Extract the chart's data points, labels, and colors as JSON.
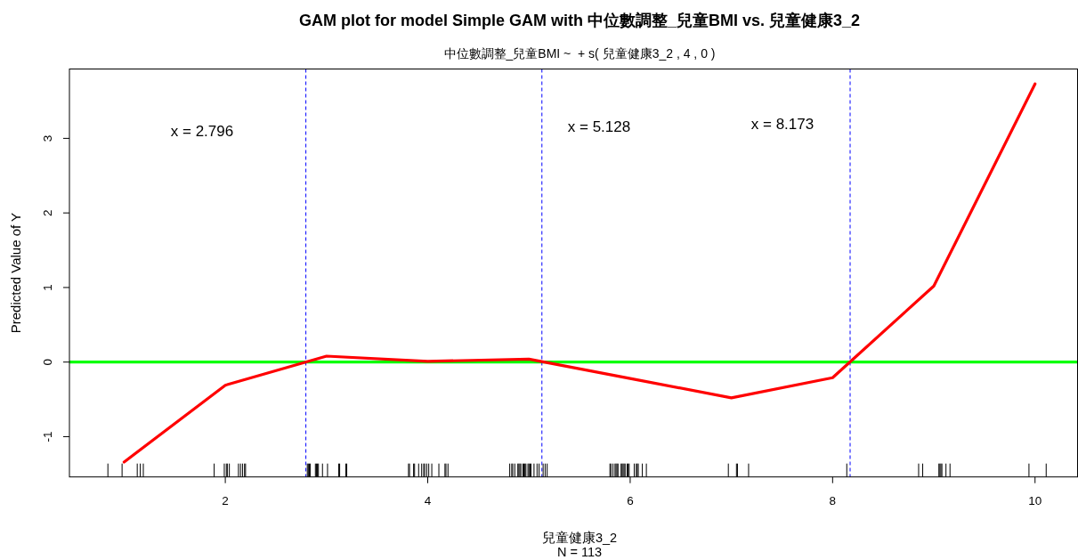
{
  "chart_data": {
    "type": "line",
    "title": "GAM plot for model Simple GAM with 中位數調整_兒童BMI vs. 兒童健康3_2",
    "subtitle": "中位數調整_兒童BMI ~  + s( 兒童健康3_2 , 4 , 0 )",
    "xlabel": "兒童健康3_2",
    "ylabel": "Predicted Value of Y",
    "annotations": [
      "x = 2.796",
      "x = 5.128",
      "x = 8.173",
      "N = 113"
    ],
    "series": [
      {
        "color": "#ff0000",
        "x": [
          1,
          2,
          3,
          4,
          5,
          6,
          7,
          8,
          9,
          10
        ],
        "values": [
          -1.34,
          -0.31,
          0.08,
          0.01,
          0.04,
          -0.22,
          -0.48,
          -0.21,
          1.02,
          3.73
        ]
      }
    ],
    "xlim": [
      0.46,
      10.42
    ],
    "ylim": [
      -1.54,
      3.93
    ],
    "xticks": [
      {
        "value": 0.84,
        "label": null
      },
      {
        "value": 0.98,
        "label": null
      },
      {
        "value": 1.13,
        "label": null
      },
      {
        "value": 1.16,
        "label": null
      },
      {
        "value": 1.19,
        "label": null
      },
      {
        "value": 1.89,
        "label": null
      },
      {
        "value": 1.99,
        "label": null
      },
      2,
      {
        "value": 2.01,
        "label": null
      },
      {
        "value": 2.02,
        "label": null
      },
      {
        "value": 2.04,
        "label": null
      },
      {
        "value": 2.13,
        "label": null
      },
      {
        "value": 2.15,
        "label": null
      },
      {
        "value": 2.17,
        "label": null
      },
      {
        "value": 2.19,
        "label": null
      },
      {
        "value": 2.2,
        "label": null
      },
      {
        "value": 2.81,
        "label": null
      },
      {
        "value": 2.82,
        "label": null
      },
      {
        "value": 2.83,
        "label": null
      },
      {
        "value": 2.84,
        "label": null
      },
      {
        "value": 2.89,
        "label": null
      },
      {
        "value": 2.9,
        "label": null
      },
      {
        "value": 2.91,
        "label": null
      },
      {
        "value": 2.92,
        "label": null
      },
      {
        "value": 2.96,
        "label": null
      },
      {
        "value": 3.01,
        "label": null
      },
      {
        "value": 3.12,
        "label": null
      },
      {
        "value": 3.13,
        "label": null
      },
      {
        "value": 3.19,
        "label": null
      },
      {
        "value": 3.2,
        "label": null
      },
      {
        "value": 3.81,
        "label": null
      },
      {
        "value": 3.82,
        "label": null
      },
      {
        "value": 3.86,
        "label": null
      },
      {
        "value": 3.87,
        "label": null
      },
      {
        "value": 3.91,
        "label": null
      },
      {
        "value": 3.94,
        "label": null
      },
      {
        "value": 3.96,
        "label": null
      },
      {
        "value": 3.97,
        "label": null
      },
      {
        "value": 3.99,
        "label": null
      },
      4,
      {
        "value": 4.01,
        "label": null
      },
      {
        "value": 4.04,
        "label": null
      },
      {
        "value": 4.11,
        "label": null
      },
      {
        "value": 4.17,
        "label": null
      },
      {
        "value": 4.18,
        "label": null
      },
      {
        "value": 4.2,
        "label": null
      },
      {
        "value": 4.81,
        "label": null
      },
      {
        "value": 4.83,
        "label": null
      },
      {
        "value": 4.84,
        "label": null
      },
      {
        "value": 4.86,
        "label": null
      },
      {
        "value": 4.89,
        "label": null
      },
      {
        "value": 4.9,
        "label": null
      },
      {
        "value": 4.91,
        "label": null
      },
      {
        "value": 4.92,
        "label": null
      },
      {
        "value": 4.94,
        "label": null
      },
      {
        "value": 4.95,
        "label": null
      },
      {
        "value": 4.96,
        "label": null
      },
      {
        "value": 4.97,
        "label": null
      },
      {
        "value": 4.99,
        "label": null
      },
      {
        "value": 5.0,
        "label": null
      },
      {
        "value": 5.01,
        "label": null
      },
      {
        "value": 5.02,
        "label": null
      },
      {
        "value": 5.05,
        "label": null
      },
      {
        "value": 5.08,
        "label": null
      },
      {
        "value": 5.1,
        "label": null
      },
      {
        "value": 5.14,
        "label": null
      },
      {
        "value": 5.16,
        "label": null
      },
      {
        "value": 5.18,
        "label": null
      },
      {
        "value": 5.8,
        "label": null
      },
      {
        "value": 5.81,
        "label": null
      },
      {
        "value": 5.83,
        "label": null
      },
      {
        "value": 5.85,
        "label": null
      },
      {
        "value": 5.86,
        "label": null
      },
      {
        "value": 5.87,
        "label": null
      },
      {
        "value": 5.88,
        "label": null
      },
      {
        "value": 5.91,
        "label": null
      },
      {
        "value": 5.92,
        "label": null
      },
      {
        "value": 5.93,
        "label": null
      },
      {
        "value": 5.94,
        "label": null
      },
      {
        "value": 5.95,
        "label": null
      },
      {
        "value": 5.97,
        "label": null
      },
      {
        "value": 5.98,
        "label": null
      },
      {
        "value": 5.99,
        "label": null
      },
      6,
      {
        "value": 6.04,
        "label": null
      },
      {
        "value": 6.06,
        "label": null
      },
      {
        "value": 6.07,
        "label": null
      },
      {
        "value": 6.08,
        "label": null
      },
      {
        "value": 6.12,
        "label": null
      },
      {
        "value": 6.16,
        "label": null
      },
      {
        "value": 6.97,
        "label": null
      },
      {
        "value": 7.05,
        "label": null
      },
      {
        "value": 7.06,
        "label": null
      },
      {
        "value": 7.17,
        "label": null
      },
      8,
      {
        "value": 8.14,
        "label": null
      },
      {
        "value": 8.85,
        "label": null
      },
      {
        "value": 8.89,
        "label": null
      },
      {
        "value": 9.05,
        "label": null
      },
      {
        "value": 9.06,
        "label": null
      },
      {
        "value": 9.07,
        "label": null
      },
      {
        "value": 9.08,
        "label": null
      },
      {
        "value": 9.12,
        "label": null
      },
      {
        "value": 9.16,
        "label": null
      },
      {
        "value": 9.94,
        "label": null
      },
      10,
      {
        "value": 10.11,
        "label": null
      }
    ],
    "yticks": [
      -1,
      0,
      1,
      2,
      3
    ],
    "ref_lines": [
      {
        "axis": "y",
        "value": 0,
        "color": "#00ff00",
        "line_style": "solid"
      },
      {
        "axis": "x",
        "value": 2.796,
        "color": "#0000ff",
        "line_style": "dashed"
      },
      {
        "axis": "x",
        "value": 5.128,
        "color": "#0000ff",
        "line_style": "dashed"
      },
      {
        "axis": "x",
        "value": 8.173,
        "color": "#0000ff",
        "line_style": "dashed"
      }
    ],
    "line_style": "solid"
  }
}
